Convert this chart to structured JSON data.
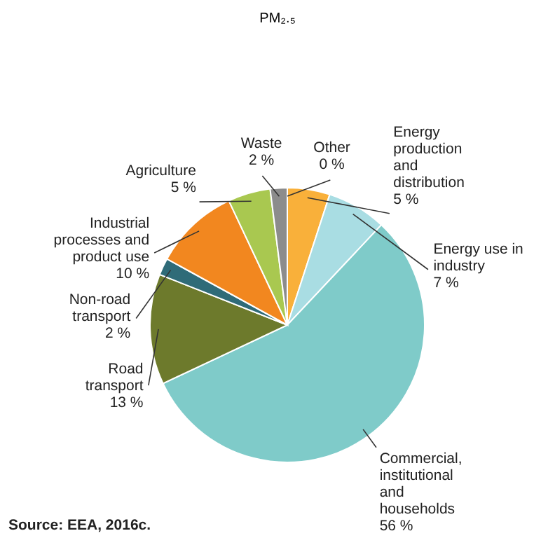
{
  "chart_data": {
    "type": "pie",
    "title": "PM₂.₅",
    "categories": [
      "Other",
      "Energy\nproduction\nand\ndistribution",
      "Energy use in\nindustry",
      "Commercial,\ninstitutional\nand\nhouseholds",
      "Road\ntransport",
      "Non-road\ntransport",
      "Industrial\nprocesses and\nproduct use",
      "Agriculture",
      "Waste"
    ],
    "values": [
      0,
      5,
      7,
      56,
      13,
      2,
      10,
      5,
      2
    ],
    "value_labels": [
      "0 %",
      "5 %",
      "7 %",
      "56 %",
      "13 %",
      "2 %",
      "10 %",
      "5 %",
      "2 %"
    ],
    "colors": [
      "#bdbdbd",
      "#f9b03a",
      "#a9dde3",
      "#7fcbc9",
      "#6d7a2c",
      "#2f6b78",
      "#f2871f",
      "#a9c850",
      "#8c8c8c"
    ],
    "annotations": [
      "Source:    EEA, 2016c."
    ]
  }
}
